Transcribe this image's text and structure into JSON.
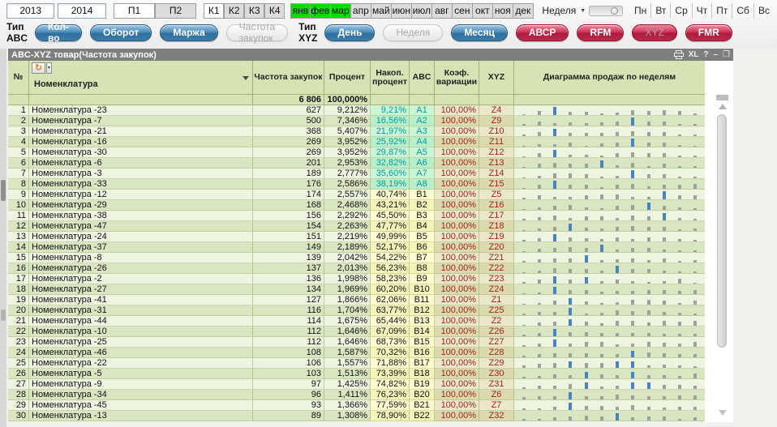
{
  "toolbar": {
    "years": [
      "2013",
      "2014"
    ],
    "halfyears": [
      {
        "label": "П1",
        "active": true
      },
      {
        "label": "П2",
        "active": false
      }
    ],
    "quarters": [
      {
        "label": "К1",
        "active": true
      },
      {
        "label": "К2",
        "active": false
      },
      {
        "label": "К3",
        "active": false
      },
      {
        "label": "К4",
        "active": false
      }
    ],
    "months": [
      {
        "label": "янв",
        "active": true
      },
      {
        "label": "фев",
        "active": true
      },
      {
        "label": "мар",
        "active": true
      },
      {
        "label": "апр",
        "active": false
      },
      {
        "label": "май",
        "active": false
      },
      {
        "label": "июн",
        "active": false
      },
      {
        "label": "июл",
        "active": false
      },
      {
        "label": "авг",
        "active": false
      },
      {
        "label": "сен",
        "active": false
      },
      {
        "label": "окт",
        "active": false
      },
      {
        "label": "ноя",
        "active": false
      },
      {
        "label": "дек",
        "active": false
      }
    ],
    "week_selector": {
      "label": "Неделя",
      "slider_position": "middle"
    },
    "weekdays": [
      "Пн",
      "Вт",
      "Ср",
      "Чт",
      "Пт",
      "Сб",
      "Вс"
    ],
    "abc_group": {
      "label": "Тип ABC",
      "buttons": [
        {
          "label": "Кол-во",
          "state": "enabled"
        },
        {
          "label": "Оборот",
          "state": "enabled"
        },
        {
          "label": "Маржа",
          "state": "enabled"
        },
        {
          "label": "Частота закупок",
          "state": "disabled"
        }
      ]
    },
    "xyz_group": {
      "label": "Тип XYZ",
      "buttons": [
        {
          "label": "День",
          "state": "enabled"
        },
        {
          "label": "Неделя",
          "state": "disabled"
        },
        {
          "label": "Месяц",
          "state": "enabled"
        }
      ]
    },
    "report_buttons": [
      {
        "label": "АВСР",
        "state": "enabled"
      },
      {
        "label": "RFM",
        "state": "enabled"
      },
      {
        "label": "XYZ",
        "state": "disabled"
      },
      {
        "label": "FMR",
        "state": "enabled"
      }
    ]
  },
  "window": {
    "title": "ABC-XYZ товар(Частота закупок)",
    "icons": [
      "print-icon",
      "excel-icon",
      "help-icon",
      "minimize-icon",
      "maximize-icon"
    ],
    "icon_glyphs": {
      "excel": "XL",
      "help": "?",
      "minimize": "–",
      "maximize": "❐"
    }
  },
  "table": {
    "columns": [
      {
        "key": "n",
        "label": "№"
      },
      {
        "key": "name",
        "label": "Номенклатура"
      },
      {
        "key": "freq",
        "label": "Частота закупок"
      },
      {
        "key": "pct",
        "label": "Процент"
      },
      {
        "key": "cum",
        "label": "Накоп. процент"
      },
      {
        "key": "abc",
        "label": "ABC"
      },
      {
        "key": "cv",
        "label": "Коэф. вариации"
      },
      {
        "key": "xyz",
        "label": "XYZ"
      },
      {
        "key": "chart",
        "label": "Диаграмма продаж по неделям"
      }
    ],
    "summary": {
      "freq": "6 806",
      "pct": "100,000%"
    },
    "rows": [
      {
        "n": 1,
        "name": "Номенклатура -23",
        "freq": "627",
        "pct": "9,212%",
        "cum": "9,21%",
        "abc": "A1",
        "cv": "100,00%",
        "xyz": "Z4",
        "bars": [
          1,
          5,
          10,
          4,
          4,
          2,
          3,
          6,
          5,
          6,
          5,
          2
        ],
        "hi": [
          2
        ]
      },
      {
        "n": 2,
        "name": "Номенклатура -7",
        "freq": "500",
        "pct": "7,346%",
        "cum": "16,56%",
        "abc": "A2",
        "cv": "100,00%",
        "xyz": "Z9",
        "bars": [
          2,
          5,
          3,
          4,
          3,
          4,
          5,
          10,
          5,
          5,
          2,
          2
        ],
        "hi": [
          7
        ]
      },
      {
        "n": 3,
        "name": "Номенклатура -21",
        "freq": "368",
        "pct": "5,407%",
        "cum": "21,97%",
        "abc": "A3",
        "cv": "100,00%",
        "xyz": "Z10",
        "bars": [
          2,
          5,
          9,
          4,
          4,
          4,
          5,
          6,
          5,
          5,
          2,
          2
        ],
        "hi": [
          2
        ]
      },
      {
        "n": 4,
        "name": "Номенклатура -16",
        "freq": "269",
        "pct": "3,952%",
        "cum": "25,92%",
        "abc": "A4",
        "cv": "100,00%",
        "xyz": "Z11",
        "bars": [
          1,
          3,
          3,
          5,
          1,
          4,
          5,
          10,
          5,
          5,
          2,
          1
        ],
        "hi": [
          7
        ]
      },
      {
        "n": 5,
        "name": "Номенклатура -30",
        "freq": "269",
        "pct": "3,952%",
        "cum": "29,87%",
        "abc": "A5",
        "cv": "100,00%",
        "xyz": "Z12",
        "bars": [
          1,
          5,
          9,
          3,
          3,
          2,
          5,
          6,
          5,
          5,
          2,
          2
        ],
        "hi": [
          2
        ]
      },
      {
        "n": 6,
        "name": "Номенклатура -6",
        "freq": "201",
        "pct": "2,953%",
        "cum": "32,82%",
        "abc": "A6",
        "cv": "100,00%",
        "xyz": "Z13",
        "bars": [
          1,
          5,
          6,
          5,
          5,
          9,
          3,
          6,
          2,
          5,
          2,
          2
        ],
        "hi": [
          5
        ]
      },
      {
        "n": 7,
        "name": "Номенклатура -3",
        "freq": "189",
        "pct": "2,777%",
        "cum": "35,60%",
        "abc": "A7",
        "cv": "100,00%",
        "xyz": "Z14",
        "bars": [
          1,
          3,
          6,
          6,
          5,
          2,
          3,
          10,
          5,
          5,
          2,
          2
        ],
        "hi": [
          7
        ]
      },
      {
        "n": 8,
        "name": "Номенклатура -33",
        "freq": "176",
        "pct": "2,586%",
        "cum": "38,19%",
        "abc": "A8",
        "cv": "100,00%",
        "xyz": "Z15",
        "bars": [
          1,
          5,
          10,
          5,
          5,
          2,
          5,
          6,
          3,
          5,
          5,
          6
        ],
        "hi": [
          2
        ]
      },
      {
        "n": 9,
        "name": "Номенклатура -12",
        "freq": "174",
        "pct": "2,557%",
        "cum": "40,74%",
        "abc": "B1",
        "cv": "100,00%",
        "xyz": "Z5",
        "bars": [
          2,
          5,
          3,
          3,
          5,
          6,
          6,
          3,
          3,
          10,
          5,
          5
        ],
        "hi": [
          9
        ]
      },
      {
        "n": 10,
        "name": "Номенклатура -29",
        "freq": "168",
        "pct": "2,468%",
        "cum": "43,21%",
        "abc": "B2",
        "cv": "100,00%",
        "xyz": "Z16",
        "bars": [
          1,
          3,
          5,
          6,
          3,
          2,
          5,
          6,
          9,
          5,
          3,
          2
        ],
        "hi": [
          8
        ]
      },
      {
        "n": 11,
        "name": "Номенклатура -38",
        "freq": "156",
        "pct": "2,292%",
        "cum": "45,50%",
        "abc": "B3",
        "cv": "100,00%",
        "xyz": "Z17",
        "bars": [
          2,
          4,
          6,
          3,
          5,
          5,
          3,
          6,
          5,
          9,
          3,
          2
        ],
        "hi": [
          9
        ]
      },
      {
        "n": 12,
        "name": "Номенклатура -47",
        "freq": "154",
        "pct": "2,263%",
        "cum": "47,77%",
        "abc": "B4",
        "cv": "100,00%",
        "xyz": "Z18",
        "bars": [
          1,
          3,
          5,
          9,
          4,
          3,
          5,
          6,
          5,
          5,
          2,
          3
        ],
        "hi": [
          3
        ]
      },
      {
        "n": 13,
        "name": "Номенклатура -24",
        "freq": "151",
        "pct": "2,219%",
        "cum": "49,99%",
        "abc": "B5",
        "cv": "100,00%",
        "xyz": "Z19",
        "bars": [
          2,
          4,
          9,
          5,
          4,
          3,
          5,
          3,
          5,
          5,
          3,
          2
        ],
        "hi": [
          2
        ]
      },
      {
        "n": 14,
        "name": "Номенклатура -37",
        "freq": "149",
        "pct": "2,189%",
        "cum": "52,17%",
        "abc": "B6",
        "cv": "100,00%",
        "xyz": "Z20",
        "bars": [
          1,
          4,
          5,
          6,
          5,
          9,
          3,
          5,
          5,
          3,
          2,
          2
        ],
        "hi": [
          5
        ]
      },
      {
        "n": 15,
        "name": "Номенклатура -8",
        "freq": "139",
        "pct": "2,042%",
        "cum": "54,22%",
        "abc": "B7",
        "cv": "100,00%",
        "xyz": "Z21",
        "bars": [
          2,
          4,
          5,
          5,
          9,
          3,
          4,
          5,
          3,
          5,
          2,
          3
        ],
        "hi": [
          4
        ]
      },
      {
        "n": 16,
        "name": "Номенклатура -26",
        "freq": "137",
        "pct": "2,013%",
        "cum": "56,23%",
        "abc": "B8",
        "cv": "100,00%",
        "xyz": "Z22",
        "bars": [
          1,
          3,
          6,
          5,
          5,
          3,
          9,
          5,
          5,
          3,
          2,
          2
        ],
        "hi": [
          6
        ]
      },
      {
        "n": 17,
        "name": "Номенклатура -2",
        "freq": "136",
        "pct": "1,998%",
        "cum": "58,23%",
        "abc": "B9",
        "cv": "100,00%",
        "xyz": "Z23",
        "bars": [
          2,
          5,
          9,
          5,
          8,
          3,
          5,
          3,
          2,
          3,
          6,
          1
        ],
        "hi": [
          2,
          4
        ]
      },
      {
        "n": 18,
        "name": "Номенклатура -27",
        "freq": "134",
        "pct": "1,969%",
        "cum": "60,20%",
        "abc": "B10",
        "cv": "100,00%",
        "xyz": "Z24",
        "bars": [
          1,
          2,
          9,
          5,
          5,
          3,
          4,
          4,
          5,
          5,
          4,
          5
        ],
        "hi": [
          2
        ]
      },
      {
        "n": 19,
        "name": "Номенклатура -41",
        "freq": "127",
        "pct": "1,866%",
        "cum": "62,06%",
        "abc": "B11",
        "cv": "100,00%",
        "xyz": "Z1",
        "bars": [
          1,
          2,
          5,
          8,
          4,
          2,
          3,
          6,
          6,
          5,
          2,
          5
        ],
        "hi": [
          3
        ]
      },
      {
        "n": 20,
        "name": "Номенклатура -31",
        "freq": "116",
        "pct": "1,704%",
        "cum": "63,77%",
        "abc": "B12",
        "cv": "100,00%",
        "xyz": "Z25",
        "bars": [
          2,
          4,
          4,
          9,
          2,
          3,
          6,
          5,
          6,
          4,
          3,
          2
        ],
        "hi": [
          3
        ]
      },
      {
        "n": 21,
        "name": "Номенклатура -44",
        "freq": "114",
        "pct": "1,675%",
        "cum": "65,44%",
        "abc": "B13",
        "cv": "100,00%",
        "xyz": "Z2",
        "bars": [
          1,
          4,
          5,
          8,
          5,
          3,
          6,
          6,
          4,
          6,
          5,
          6
        ],
        "hi": [
          3
        ]
      },
      {
        "n": 22,
        "name": "Номенклатура -10",
        "freq": "112",
        "pct": "1,646%",
        "cum": "67,09%",
        "abc": "B14",
        "cv": "100,00%",
        "xyz": "Z26",
        "bars": [
          2,
          4,
          9,
          5,
          5,
          4,
          4,
          4,
          4,
          3,
          3,
          3
        ],
        "hi": [
          2
        ]
      },
      {
        "n": 23,
        "name": "Номенклатура -25",
        "freq": "112",
        "pct": "1,646%",
        "cum": "68,73%",
        "abc": "B15",
        "cv": "100,00%",
        "xyz": "Z27",
        "bars": [
          2,
          4,
          9,
          4,
          6,
          6,
          3,
          4,
          6,
          5,
          4,
          6
        ],
        "hi": [
          2
        ]
      },
      {
        "n": 24,
        "name": "Номенклатура -46",
        "freq": "108",
        "pct": "1,587%",
        "cum": "70,32%",
        "abc": "B16",
        "cv": "100,00%",
        "xyz": "Z28",
        "bars": [
          2,
          4,
          5,
          5,
          5,
          4,
          4,
          8,
          6,
          5,
          4,
          4
        ],
        "hi": [
          7
        ]
      },
      {
        "n": 25,
        "name": "Номенклатура -22",
        "freq": "106",
        "pct": "1,557%",
        "cum": "71,88%",
        "abc": "B17",
        "cv": "100,00%",
        "xyz": "Z29",
        "bars": [
          3,
          5,
          6,
          8,
          6,
          6,
          8,
          8,
          3,
          4,
          3,
          2
        ],
        "hi": [
          3,
          6,
          7
        ]
      },
      {
        "n": 26,
        "name": "Номенклатура -5",
        "freq": "103",
        "pct": "1,513%",
        "cum": "73,39%",
        "abc": "B18",
        "cv": "100,00%",
        "xyz": "Z30",
        "bars": [
          2,
          3,
          5,
          4,
          8,
          5,
          4,
          8,
          4,
          4,
          3,
          6
        ],
        "hi": [
          4,
          7
        ]
      },
      {
        "n": 27,
        "name": "Номенклатура -9",
        "freq": "97",
        "pct": "1,425%",
        "cum": "74,82%",
        "abc": "B19",
        "cv": "100,00%",
        "xyz": "Z31",
        "bars": [
          2,
          4,
          4,
          6,
          8,
          3,
          4,
          8,
          8,
          5,
          5,
          4
        ],
        "hi": [
          4,
          7,
          8
        ]
      },
      {
        "n": 28,
        "name": "Номенклатура -34",
        "freq": "96",
        "pct": "1,411%",
        "cum": "76,23%",
        "abc": "B20",
        "cv": "100,00%",
        "xyz": "Z6",
        "bars": [
          3,
          4,
          4,
          9,
          4,
          4,
          6,
          5,
          4,
          4,
          5,
          5
        ],
        "hi": [
          3
        ]
      },
      {
        "n": 29,
        "name": "Номенклатура -45",
        "freq": "93",
        "pct": "1,366%",
        "cum": "77,59%",
        "abc": "B21",
        "cv": "100,00%",
        "xyz": "Z7",
        "bars": [
          2,
          2,
          4,
          9,
          5,
          5,
          4,
          6,
          4,
          3,
          4,
          4
        ],
        "hi": [
          3
        ]
      },
      {
        "n": 30,
        "name": "Номенклатура -13",
        "freq": "89",
        "pct": "1,308%",
        "cum": "78,90%",
        "abc": "B22",
        "cv": "100,00%",
        "xyz": "Z32",
        "bars": [
          2,
          2,
          4,
          5,
          6,
          5,
          9,
          4,
          5,
          5,
          2,
          4
        ],
        "hi": [
          6
        ]
      }
    ]
  },
  "colors": {
    "month_active": "#00dd00",
    "header_green": "#d7e3b4",
    "row_odd": "#eff4e1",
    "row_even": "#d9e6c1",
    "mint_cell": "#c9f5d2",
    "mint_text": "#009fa5",
    "yellow_cell": "#ffffd0",
    "tan_cell": "#e2e2bc",
    "red_text": "#a32323",
    "pill_blue": "#3c7dac",
    "pill_red": "#bb2b4c",
    "spark_bar": "#9aa29b",
    "spark_highlight": "#4684c6",
    "titlebar": "#7e7e7e"
  }
}
